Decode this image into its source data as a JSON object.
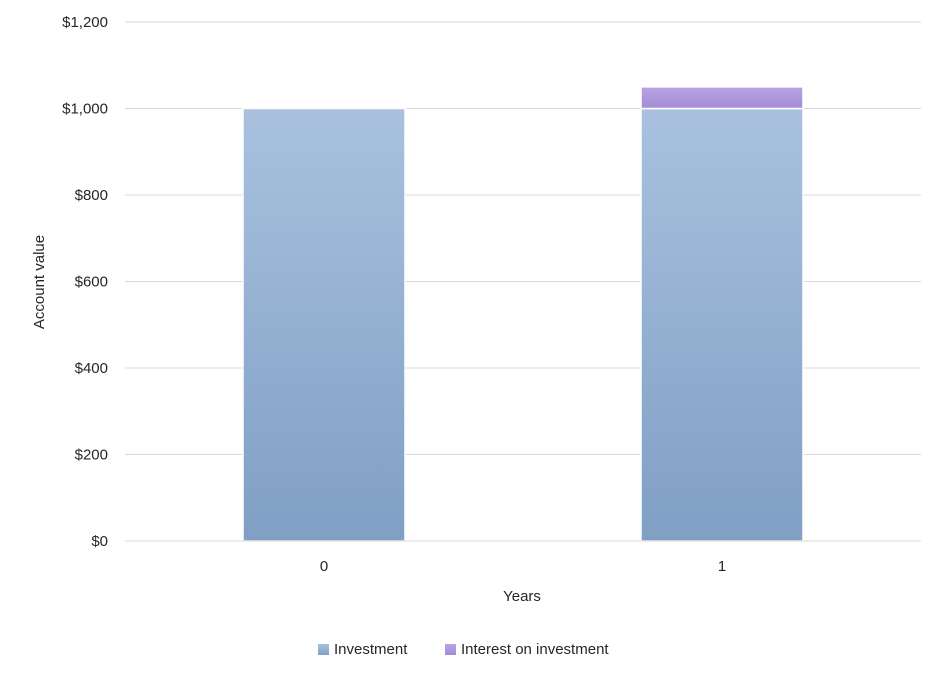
{
  "chart_data": {
    "type": "bar",
    "stacked": true,
    "title": "",
    "xlabel": "Years",
    "ylabel": "Account value",
    "categories": [
      "0",
      "1"
    ],
    "series": [
      {
        "name": "Investment",
        "values": [
          1000,
          1000
        ],
        "color": "#95b3d7"
      },
      {
        "name": "Interest on investment",
        "values": [
          0,
          50
        ],
        "color": "#b09bdc"
      }
    ],
    "ylim": [
      0,
      1200
    ],
    "yticks": [
      0,
      200,
      400,
      600,
      800,
      1000,
      1200
    ],
    "ytick_labels": [
      "$0",
      "$200",
      "$400",
      "$600",
      "$800",
      "$1,000",
      "$1,200"
    ],
    "grid": true,
    "legend_position": "bottom"
  }
}
